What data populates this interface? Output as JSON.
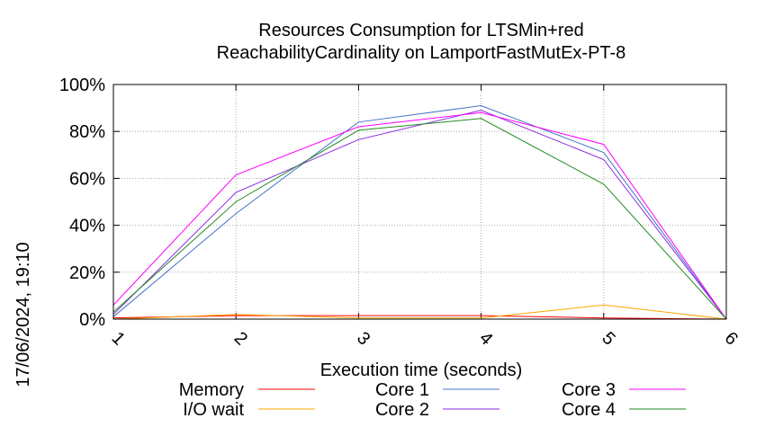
{
  "chart_data": {
    "type": "line",
    "title_line1": "Resources Consumption for LTSMin+red",
    "title_line2": "ReachabilityCardinality on LamportFastMutEx-PT-8",
    "xlabel": "Execution time (seconds)",
    "ylabel": "",
    "side_label": "17/06/2024, 19:10",
    "x": [
      1,
      2,
      3,
      4,
      5,
      6
    ],
    "x_tick_labels": [
      "1",
      "2",
      "3",
      "4",
      "5",
      "6"
    ],
    "y_ticks": [
      0,
      20,
      40,
      60,
      80,
      100
    ],
    "y_tick_labels": [
      "0%",
      "20%",
      "40%",
      "60%",
      "80%",
      "100%"
    ],
    "xlim": [
      1,
      6
    ],
    "ylim": [
      0,
      100
    ],
    "grid": true,
    "legend_position": "bottom",
    "series": [
      {
        "name": "Memory",
        "color": "#ff0000",
        "values": [
          0.5,
          1.5,
          1.5,
          1.5,
          0.5,
          0
        ]
      },
      {
        "name": "I/O wait",
        "color": "#ffa500",
        "values": [
          0,
          2,
          0.5,
          0.5,
          6,
          0
        ]
      },
      {
        "name": "Core 1",
        "color": "#4472c4",
        "values": [
          1,
          45,
          84,
          91,
          71,
          0
        ]
      },
      {
        "name": "Core 2",
        "color": "#8a2be2",
        "values": [
          2,
          54,
          76.5,
          89,
          68,
          0
        ]
      },
      {
        "name": "Core 3",
        "color": "#ff00ff",
        "values": [
          6,
          61.5,
          82,
          88,
          74.5,
          0
        ]
      },
      {
        "name": "Core 4",
        "color": "#228b22",
        "values": [
          3,
          50,
          80.5,
          85.5,
          57.5,
          0
        ]
      }
    ]
  }
}
